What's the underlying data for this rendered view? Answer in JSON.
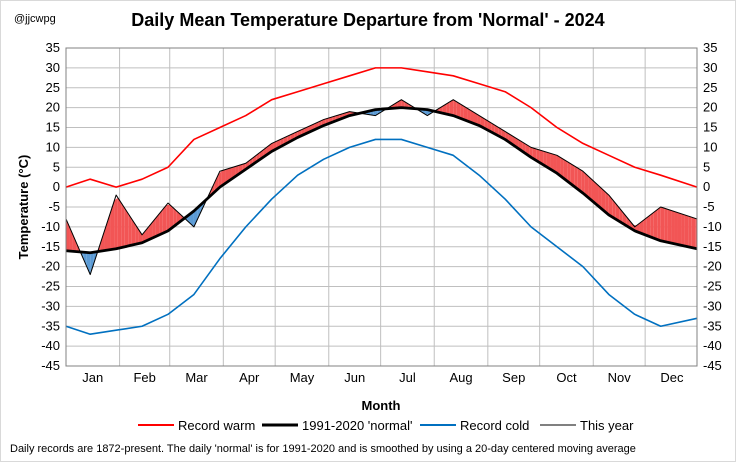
{
  "chart_data": {
    "type": "line",
    "title": "Daily Mean Temperature Departure from 'Normal' - 2024",
    "handle": "@jjcwpg",
    "xlabel": "Month",
    "ylabel": "Temperature (°C)",
    "ylim": [
      -45,
      35
    ],
    "yticks": [
      35,
      30,
      25,
      20,
      15,
      10,
      5,
      0,
      -5,
      -10,
      -15,
      -20,
      -25,
      -30,
      -35,
      -40,
      -45
    ],
    "months": [
      "Jan",
      "Feb",
      "Mar",
      "Apr",
      "May",
      "Jun",
      "Jul",
      "Aug",
      "Sep",
      "Oct",
      "Nov",
      "Dec"
    ],
    "grid": true,
    "legend_position": "bottom",
    "colors": {
      "record_warm": "#ff0000",
      "normal": "#000000",
      "record_cold": "#0070c0",
      "this_year": "#000000",
      "above_fill": "#f25555",
      "below_fill": "#5b9bd5",
      "grid": "#bfbfbf"
    },
    "series": [
      {
        "name": "Record warm",
        "x": [
          1,
          15,
          30,
          45,
          60,
          75,
          90,
          105,
          120,
          135,
          150,
          165,
          180,
          195,
          210,
          225,
          240,
          255,
          270,
          285,
          300,
          315,
          330,
          345,
          366
        ],
        "values": [
          0,
          2,
          0,
          2,
          5,
          12,
          15,
          18,
          22,
          24,
          26,
          28,
          30,
          30,
          29,
          28,
          26,
          24,
          20,
          15,
          11,
          8,
          5,
          3,
          0
        ]
      },
      {
        "name": "1991-2020 'normal'",
        "x": [
          1,
          15,
          30,
          45,
          60,
          75,
          90,
          105,
          120,
          135,
          150,
          165,
          180,
          195,
          210,
          225,
          240,
          255,
          270,
          285,
          300,
          315,
          330,
          345,
          366
        ],
        "values": [
          -16,
          -16.5,
          -15.5,
          -14,
          -11,
          -6,
          0,
          4.5,
          9,
          12.5,
          15.5,
          18,
          19.5,
          20,
          19.5,
          18,
          15.5,
          12,
          7.5,
          3.5,
          -1.5,
          -7,
          -11,
          -13.5,
          -15.5
        ]
      },
      {
        "name": "Record cold",
        "x": [
          1,
          15,
          30,
          45,
          60,
          75,
          90,
          105,
          120,
          135,
          150,
          165,
          180,
          195,
          210,
          225,
          240,
          255,
          270,
          285,
          300,
          315,
          330,
          345,
          366
        ],
        "values": [
          -35,
          -37,
          -36,
          -35,
          -32,
          -27,
          -18,
          -10,
          -3,
          3,
          7,
          10,
          12,
          12,
          10,
          8,
          3,
          -3,
          -10,
          -15,
          -20,
          -27,
          -32,
          -35,
          -33
        ]
      },
      {
        "name": "This year",
        "x": [
          1,
          15,
          30,
          45,
          60,
          75,
          90,
          105,
          120,
          135,
          150,
          165,
          180,
          195,
          210,
          225,
          240,
          255,
          270,
          285,
          300,
          315,
          330,
          345,
          366
        ],
        "values": [
          -8,
          -22,
          -2,
          -12,
          -4,
          -10,
          4,
          6,
          11,
          14,
          17,
          19,
          18,
          22,
          18,
          22,
          18,
          14,
          10,
          8,
          4,
          -2,
          -10,
          -5,
          -8
        ]
      }
    ],
    "footnote": "Daily records are 1872-present. The  daily 'normal' is for 1991-2020 and is smoothed by using a 20-day centered moving average"
  }
}
